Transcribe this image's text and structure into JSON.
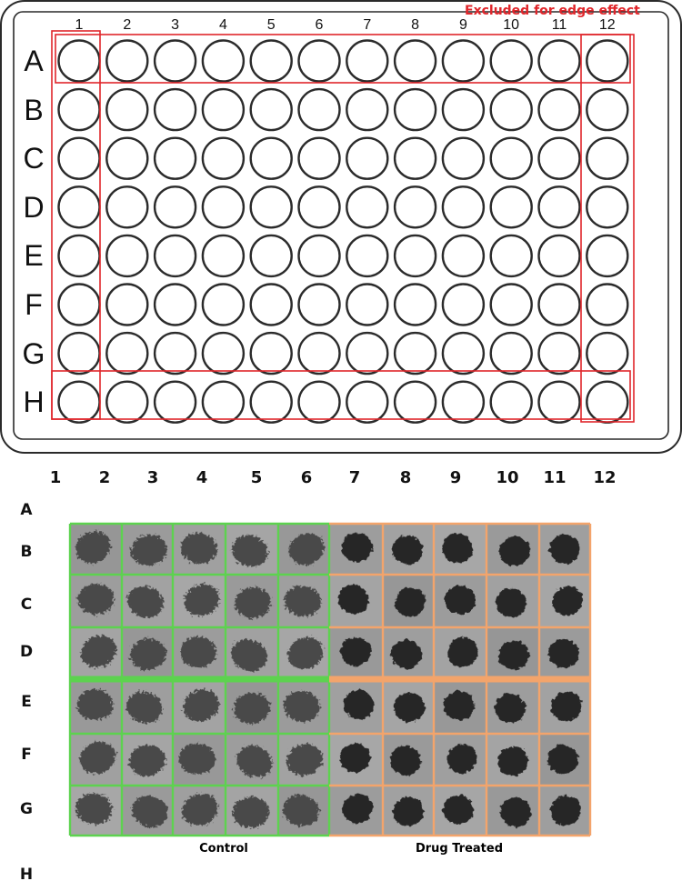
{
  "colors": {
    "excluded": "#e0262b",
    "control": "#5dd24f",
    "treated": "#f3a46b",
    "well_stroke": "#2b2b2b",
    "image_bg": "#9b9b9b"
  },
  "plate": {
    "columns": [
      "1",
      "2",
      "3",
      "4",
      "5",
      "6",
      "7",
      "8",
      "9",
      "10",
      "11",
      "12"
    ],
    "rows": [
      "A",
      "B",
      "C",
      "D",
      "E",
      "F",
      "G",
      "H"
    ],
    "excluded_label": "Excluded for edge effect"
  },
  "image_grid": {
    "columns": [
      "1",
      "2",
      "3",
      "4",
      "5",
      "6",
      "7",
      "8",
      "9",
      "10",
      "11",
      "12"
    ],
    "rows": [
      "A",
      "B",
      "C",
      "D",
      "E",
      "F",
      "G",
      "H"
    ],
    "imaged_rows": [
      "B",
      "C",
      "D",
      "E",
      "F",
      "G"
    ],
    "imaged_columns": [
      "2",
      "3",
      "4",
      "5",
      "6",
      "7",
      "8",
      "9",
      "10",
      "11"
    ],
    "groups": [
      {
        "label": "Control",
        "columns": [
          "2",
          "3",
          "4",
          "5",
          "6"
        ],
        "color_key": "control"
      },
      {
        "label": "Drug Treated",
        "columns": [
          "7",
          "8",
          "9",
          "10",
          "11"
        ],
        "color_key": "treated"
      }
    ]
  }
}
